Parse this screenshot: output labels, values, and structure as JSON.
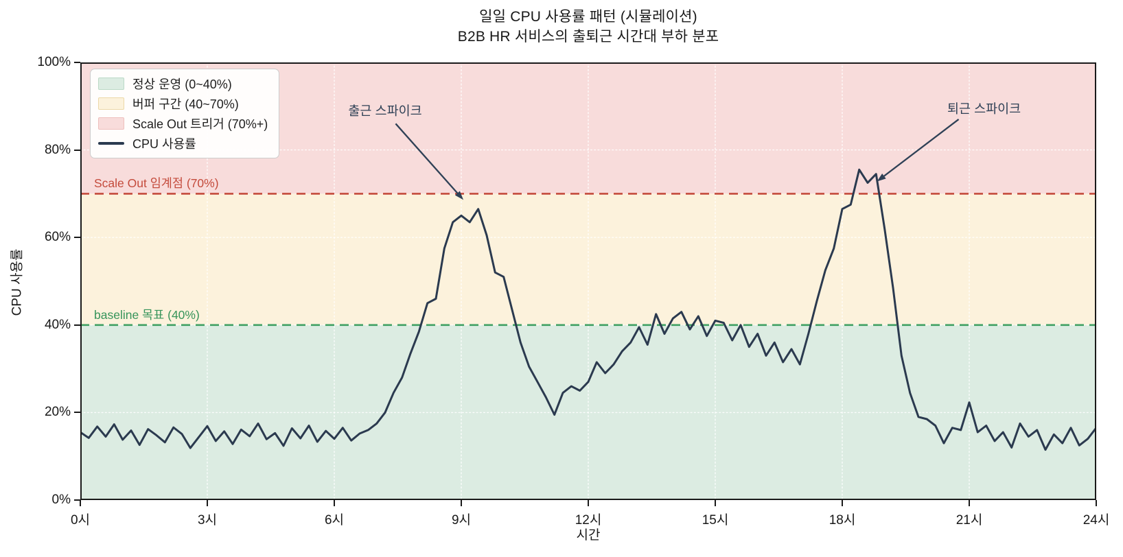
{
  "title": "일일 CPU 사용률 패턴 (시뮬레이션)",
  "subtitle": "B2B HR 서비스의 출퇴근 시간대 부하 분포",
  "chart_data": {
    "type": "line",
    "title": "일일 CPU 사용률 패턴 (시뮬레이션)",
    "subtitle": "B2B HR 서비스의 출퇴근 시간대 부하 분포",
    "xlabel": "시간",
    "ylabel": "CPU 사용률",
    "xlim": [
      0,
      24
    ],
    "ylim": [
      0,
      100
    ],
    "grid": true,
    "x_ticks": [
      {
        "hour": 0,
        "label": "0시"
      },
      {
        "hour": 3,
        "label": "3시"
      },
      {
        "hour": 6,
        "label": "6시"
      },
      {
        "hour": 9,
        "label": "9시"
      },
      {
        "hour": 12,
        "label": "12시"
      },
      {
        "hour": 15,
        "label": "15시"
      },
      {
        "hour": 18,
        "label": "18시"
      },
      {
        "hour": 21,
        "label": "21시"
      },
      {
        "hour": 24,
        "label": "24시"
      }
    ],
    "y_ticks": [
      {
        "pct": 0,
        "label": "0%"
      },
      {
        "pct": 20,
        "label": "20%"
      },
      {
        "pct": 40,
        "label": "40%"
      },
      {
        "pct": 60,
        "label": "60%"
      },
      {
        "pct": 80,
        "label": "80%"
      },
      {
        "pct": 100,
        "label": "100%"
      }
    ],
    "bands": [
      {
        "from": 0,
        "to": 40,
        "color": "#dcece2",
        "label": "정상 운영 (0~40%)"
      },
      {
        "from": 40,
        "to": 70,
        "color": "#fcf2dc",
        "label": "버퍼 구간 (40~70%)"
      },
      {
        "from": 70,
        "to": 100,
        "color": "#f8dcdb",
        "label": "Scale Out 트리거 (70%+)"
      }
    ],
    "thresholds": [
      {
        "pct": 70,
        "label": "Scale Out 임계점 (70%)",
        "color": "#c44b3c",
        "label_color": "#c44b3c"
      },
      {
        "pct": 40,
        "label": "baseline 목표 (40%)",
        "color": "#3fa063",
        "label_color": "#36945a"
      }
    ],
    "annotations": [
      {
        "text": "출근 스파이크",
        "text_hour": 7.2,
        "text_pct": 89,
        "tail_hour": 7.45,
        "tail_pct": 86,
        "tip_hour": 9.05,
        "tip_pct": 68.6,
        "color": "#2f4156"
      },
      {
        "text": "퇴근 스파이크",
        "text_hour": 21.35,
        "text_pct": 89.5,
        "tail_hour": 20.75,
        "tail_pct": 87,
        "tip_hour": 18.82,
        "tip_pct": 72.8,
        "color": "#2f4156"
      }
    ],
    "legend_items": [
      {
        "label": "정상 운영 (0~40%)",
        "swatch": "#dcece2",
        "edge": "#bcd9c6",
        "type": "patch"
      },
      {
        "label": "버퍼 구간 (40~70%)",
        "swatch": "#fcf2dc",
        "edge": "#ecd8a8",
        "type": "patch"
      },
      {
        "label": "Scale Out 트리거 (70%+)",
        "swatch": "#f8dcdb",
        "edge": "#eec0bd",
        "type": "patch"
      },
      {
        "label": "CPU 사용률",
        "swatch": "#2b3a4f",
        "edge": "#2b3a4f",
        "type": "line"
      }
    ],
    "series": [
      {
        "name": "CPU 사용률",
        "color": "#2b3a4f",
        "x_start": 0,
        "x_step_hours": 0.2,
        "unit": "percent",
        "values": [
          15.5,
          14.2,
          16.8,
          14.5,
          17.3,
          13.8,
          15.9,
          12.6,
          16.2,
          14.8,
          13.2,
          16.6,
          15.1,
          11.9,
          14.4,
          16.9,
          13.5,
          15.7,
          12.8,
          16.1,
          14.6,
          17.5,
          13.9,
          15.3,
          12.4,
          16.4,
          14.1,
          17.0,
          13.3,
          15.8,
          14.0,
          16.5,
          13.6,
          15.2,
          16.0,
          17.5,
          20.0,
          24.5,
          28.0,
          33.5,
          38.5,
          45.0,
          46.0,
          57.5,
          63.5,
          65.0,
          63.5,
          66.5,
          60.5,
          52.0,
          51.0,
          43.5,
          36.0,
          30.5,
          27.0,
          23.5,
          19.5,
          24.5,
          26.0,
          25.0,
          27.0,
          31.5,
          29.0,
          31.0,
          34.0,
          36.0,
          39.5,
          35.5,
          42.5,
          38.0,
          41.5,
          43.0,
          39.0,
          42.0,
          37.5,
          41.0,
          40.5,
          36.5,
          40.0,
          35.0,
          38.0,
          33.0,
          36.0,
          31.5,
          34.5,
          31.0,
          38.0,
          45.5,
          52.5,
          57.5,
          66.5,
          67.5,
          75.5,
          72.5,
          74.5,
          62.0,
          48.5,
          33.0,
          24.5,
          19.0,
          18.5,
          17.0,
          13.0,
          16.5,
          16.0,
          22.3,
          15.5,
          17.0,
          13.5,
          15.5,
          12.0,
          17.5,
          14.5,
          16.0,
          11.5,
          15.0,
          13.0,
          16.5,
          12.5,
          14.0,
          16.5
        ]
      }
    ],
    "legend_position": "upper left",
    "styles": {
      "line_color": "#2b3a4f",
      "spine_color": "#1a1a1a",
      "grid_color": "rgba(255,255,255,0.85)",
      "text_color": "#181818"
    }
  }
}
